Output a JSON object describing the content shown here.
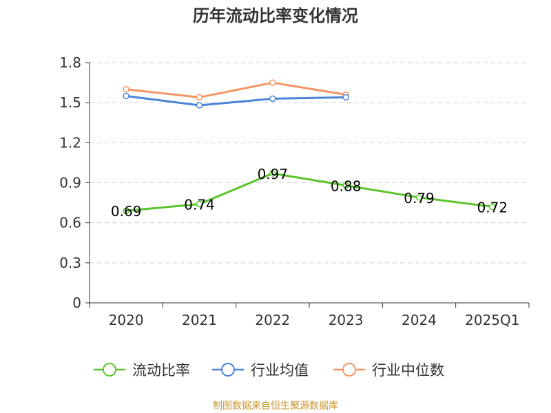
{
  "chart_data": {
    "type": "line",
    "title": "历年流动比率变化情况",
    "categories": [
      "2020",
      "2021",
      "2022",
      "2023",
      "2024",
      "2025Q1"
    ],
    "ylim": [
      0,
      1.8
    ],
    "yticks": [
      "0",
      "0.3",
      "0.6",
      "0.9",
      "1.2",
      "1.5",
      "1.8"
    ],
    "grid": true,
    "legend_position": "bottom",
    "series": [
      {
        "name": "流动比率",
        "color": "#5ac42a",
        "values": [
          0.69,
          0.74,
          0.97,
          0.88,
          0.79,
          0.72
        ],
        "labels": [
          "0.69",
          "0.74",
          "0.97",
          "0.88",
          "0.79",
          "0.72"
        ]
      },
      {
        "name": "行业均值",
        "color": "#4a84d8",
        "values": [
          1.55,
          1.48,
          1.53,
          1.54,
          null,
          null
        ]
      },
      {
        "name": "行业中位数",
        "color": "#f59564",
        "values": [
          1.6,
          1.54,
          1.65,
          1.56,
          null,
          null
        ]
      }
    ]
  },
  "footer": {
    "source": "制图数据来自恒生聚源数据库"
  }
}
